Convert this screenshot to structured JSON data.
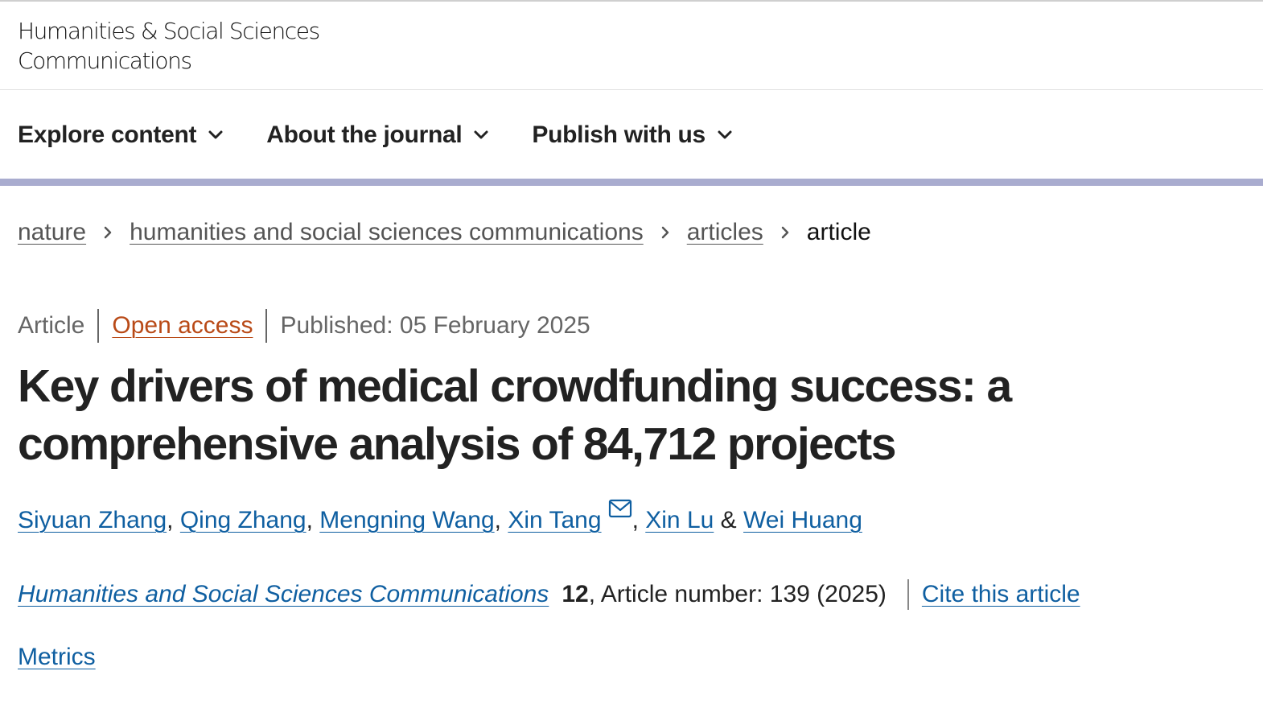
{
  "header": {
    "journal_name_line1": "Humanities & Social Sciences",
    "journal_name_line2": "Communications"
  },
  "nav": {
    "items": [
      {
        "label": "Explore content",
        "icon": "chevron-down-icon"
      },
      {
        "label": "About the journal",
        "icon": "chevron-down-icon"
      },
      {
        "label": "Publish with us",
        "icon": "chevron-down-icon"
      }
    ]
  },
  "colors": {
    "accent_bar": "#a9accf",
    "link_blue": "#0f5fa1",
    "open_access_orange": "#b94a17",
    "text": "#222222"
  },
  "breadcrumb": {
    "items": [
      {
        "label": "nature",
        "link": true
      },
      {
        "label": "humanities and social sciences communications",
        "link": true
      },
      {
        "label": "articles",
        "link": true
      },
      {
        "label": "article",
        "link": false
      }
    ],
    "separator_icon": "chevron-right-icon"
  },
  "article": {
    "type": "Article",
    "access": "Open access",
    "published": "Published: 05 February 2025",
    "title": "Key drivers of medical crowdfunding success: a comprehensive analysis of 84,712 projects",
    "authors": [
      {
        "name": "Siyuan Zhang"
      },
      {
        "name": "Qing Zhang"
      },
      {
        "name": "Mengning Wang"
      },
      {
        "name": "Xin Tang",
        "corresponding": true,
        "icon": "mail-icon"
      },
      {
        "name": "Xin Lu"
      },
      {
        "name": "Wei Huang"
      }
    ],
    "author_separator": ",",
    "author_last_separator": "&"
  },
  "citation": {
    "journal": "Humanities and Social Sciences Communications",
    "volume": "12",
    "article_number_text": ", Article number: 139 (2025)",
    "cite_label": "Cite this article"
  },
  "metrics_label": "Metrics"
}
